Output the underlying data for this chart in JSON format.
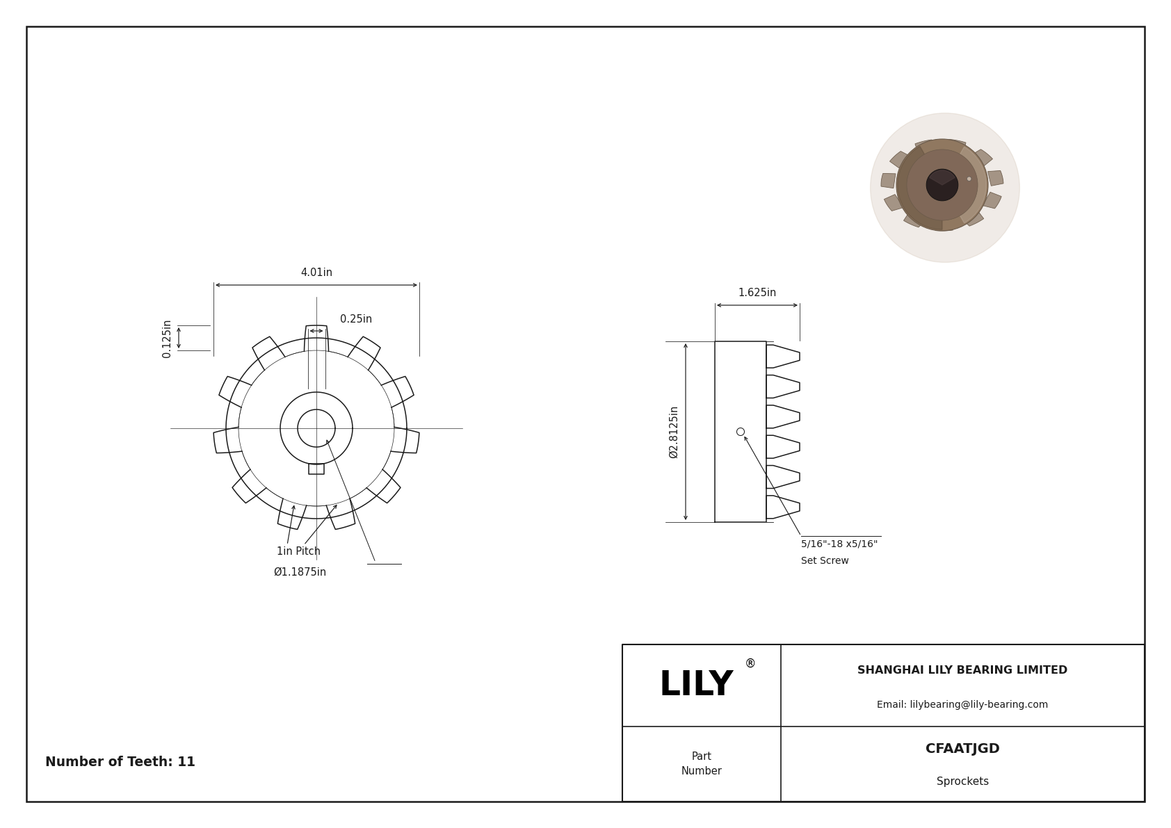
{
  "bg_color": "#ffffff",
  "line_color": "#1a1a1a",
  "num_teeth": 11,
  "dim_od": "4.01in",
  "dim_hub_offset": "0.25in",
  "dim_tooth_depth": "0.125in",
  "dim_bore": "Ø1.1875in",
  "dim_pitch": "1in Pitch",
  "dim_width": "1.625in",
  "dim_diameter": "Ø2.8125in",
  "dim_set_screw": "5/16\"-18 x5/16\"",
  "dim_set_screw2": "Set Screw",
  "number_of_teeth_label": "Number of Teeth: 11",
  "company_name": "SHANGHAI LILY BEARING LIMITED",
  "company_email": "Email: lilybearing@lily-bearing.com",
  "part_number_label": "Part\nNumber",
  "part_number": "CFAATJGD",
  "category": "Sprockets",
  "lily_logo": "LILY",
  "registered_mark": "®",
  "tooth_color_body": "#a09080",
  "tooth_color_dark": "#6a5a4a",
  "tooth_color_mid": "#806858",
  "tooth_color_light": "#c0b0a0",
  "hub_color": "#907860",
  "hub_color_dark": "#504030",
  "bore_color": "#2a2020"
}
